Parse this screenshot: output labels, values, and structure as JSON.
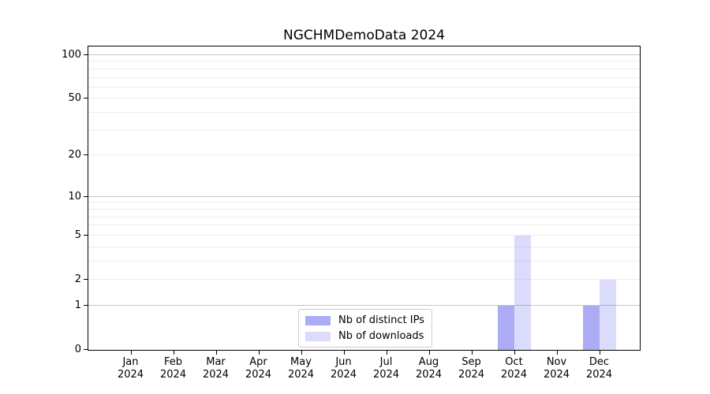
{
  "chart_data": {
    "type": "bar",
    "title": "NGCHMDemoData 2024",
    "categories": [
      "Jan 2024",
      "Feb 2024",
      "Mar 2024",
      "Apr 2024",
      "May 2024",
      "Jun 2024",
      "Jul 2024",
      "Aug 2024",
      "Sep 2024",
      "Oct 2024",
      "Nov 2024",
      "Dec 2024"
    ],
    "series": [
      {
        "name": "Nb of distinct IPs",
        "color": "rgba(90,90,235,0.50)",
        "values": [
          0,
          0,
          0,
          0,
          0,
          0,
          0,
          0,
          0,
          1,
          0,
          1
        ]
      },
      {
        "name": "Nb of downloads",
        "color": "rgba(90,90,235,0.22)",
        "values": [
          0,
          0,
          0,
          0,
          0,
          0,
          0,
          0,
          0,
          5,
          0,
          2
        ]
      }
    ],
    "xlabel": "",
    "ylabel": "",
    "yscale": "log1p",
    "ylim": [
      0,
      115
    ],
    "ytick_labels": [
      0,
      1,
      2,
      5,
      10,
      20,
      50,
      100
    ],
    "major_gridlines": [
      1,
      10,
      100
    ],
    "minor_gridlines": [
      2,
      3,
      4,
      5,
      6,
      7,
      8,
      9,
      20,
      30,
      40,
      50,
      60,
      70,
      80,
      90
    ],
    "grid": "on",
    "legend_position": "lower center",
    "colors": {
      "axis": "#000000",
      "major_grid": "#c6c6c6",
      "minor_grid": "#ededed",
      "legend_border": "#cccccc"
    }
  }
}
